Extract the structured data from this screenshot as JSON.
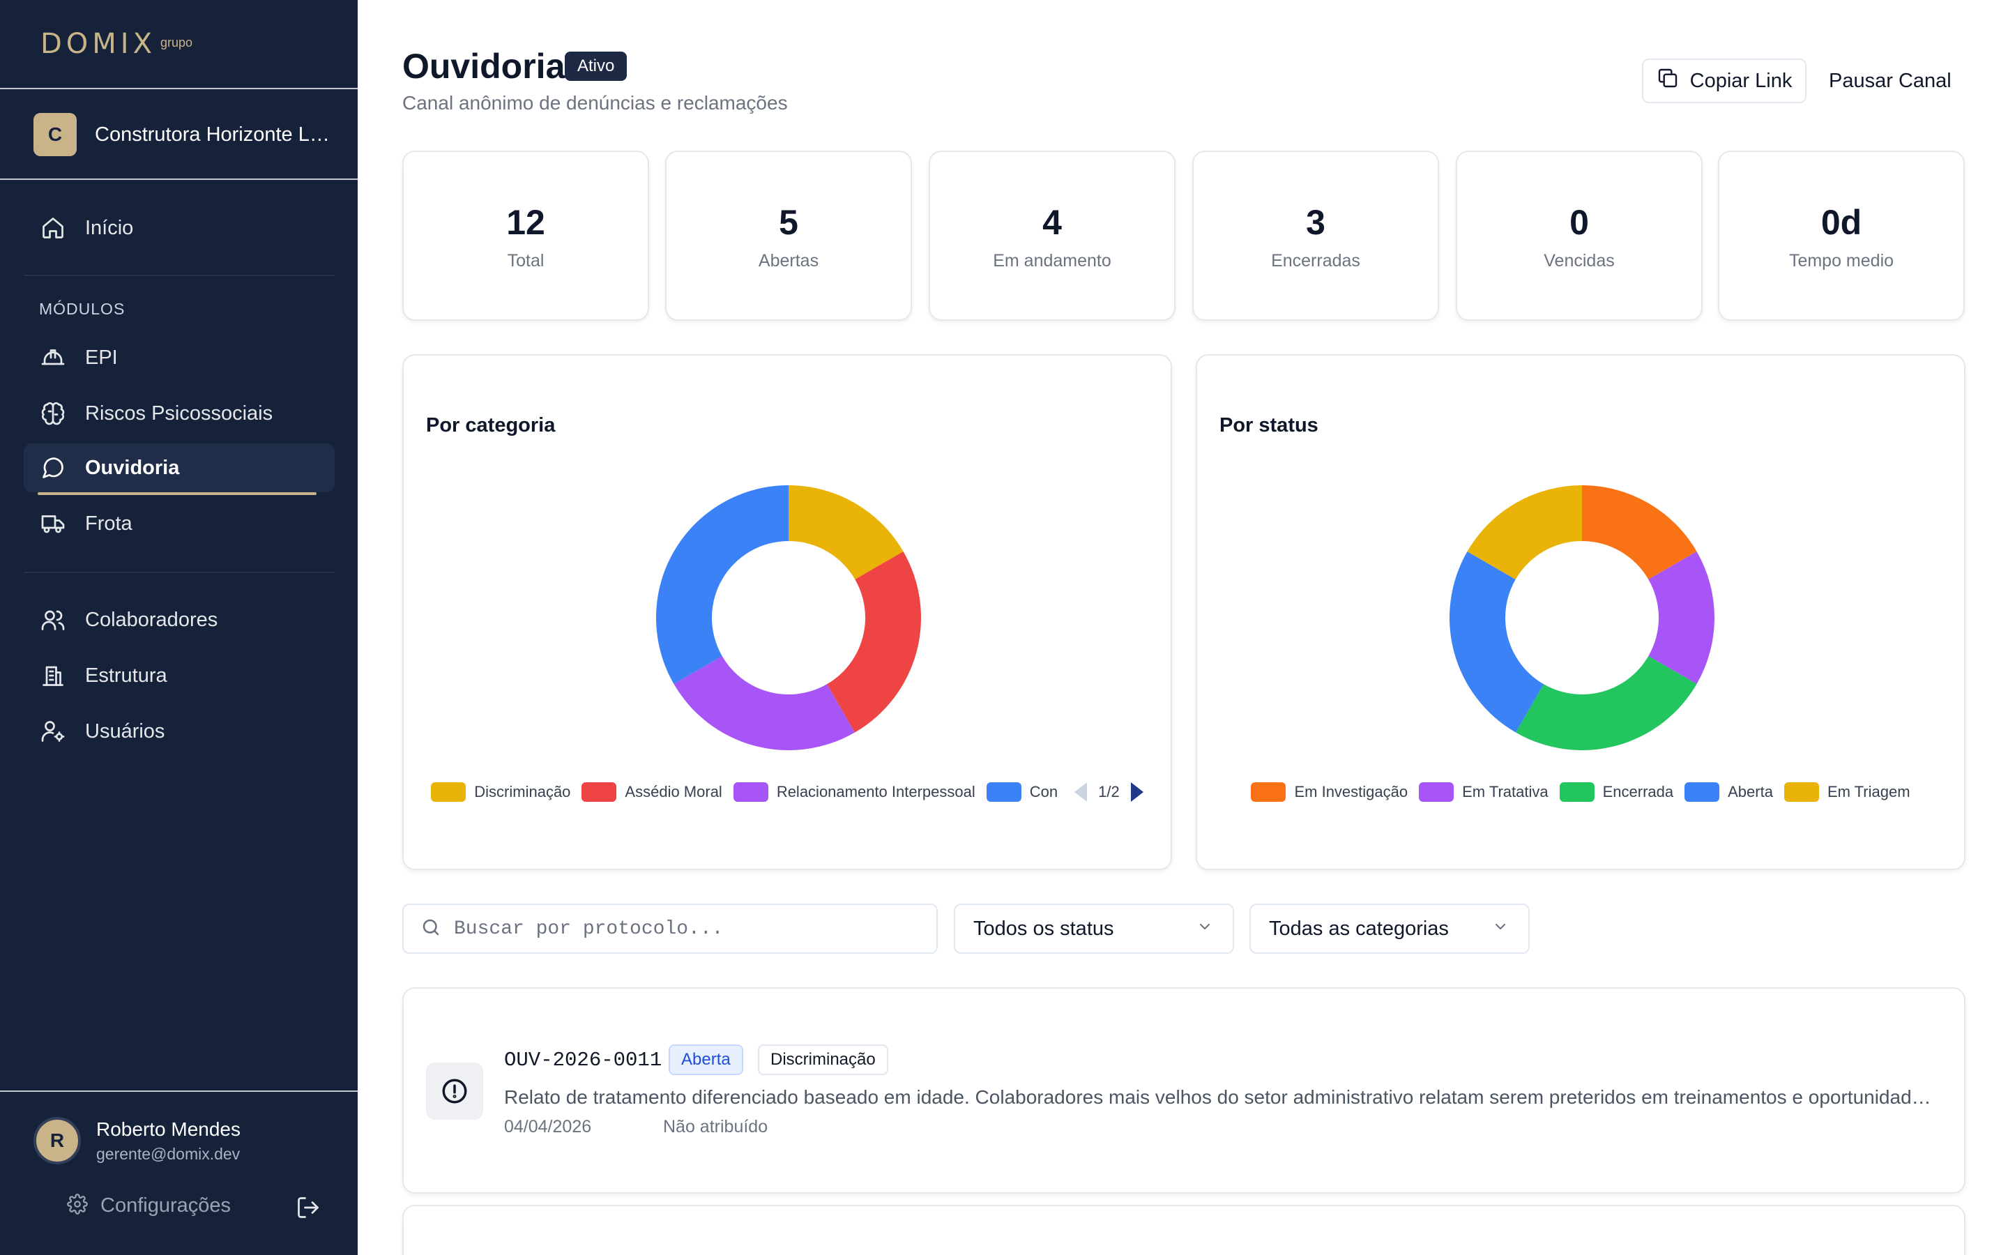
{
  "brand": {
    "name": "DOMIX",
    "suffix": "grupo",
    "accent": "#c9b389",
    "sidebar_bg": "#15223a"
  },
  "company": {
    "initial": "C",
    "name": "Construtora Horizonte Ltda"
  },
  "nav": {
    "home": {
      "label": "Início",
      "icon": "home-icon"
    },
    "section_label": "MÓDULOS",
    "modules": [
      {
        "label": "EPI",
        "icon": "hard-hat-icon"
      },
      {
        "label": "Riscos Psicossociais",
        "icon": "brain-icon"
      },
      {
        "label": "Ouvidoria",
        "icon": "chat-bubble-icon",
        "active": true
      },
      {
        "label": "Frota",
        "icon": "truck-icon"
      }
    ],
    "admin": [
      {
        "label": "Colaboradores",
        "icon": "users-icon"
      },
      {
        "label": "Estrutura",
        "icon": "building-icon"
      },
      {
        "label": "Usuários",
        "icon": "user-settings-icon"
      }
    ]
  },
  "user": {
    "initial": "R",
    "name": "Roberto Mendes",
    "email": "gerente@domix.dev"
  },
  "footer": {
    "settings_label": "Configurações"
  },
  "header": {
    "title": "Ouvidoria",
    "status": "Ativo",
    "subtitle": "Canal anônimo de denúncias e reclamações",
    "copy_link": "Copiar Link",
    "pause": "Pausar Canal"
  },
  "stats": [
    {
      "value": "12",
      "label": "Total"
    },
    {
      "value": "5",
      "label": "Abertas"
    },
    {
      "value": "4",
      "label": "Em andamento"
    },
    {
      "value": "3",
      "label": "Encerradas"
    },
    {
      "value": "0",
      "label": "Vencidas"
    },
    {
      "value": "0d",
      "label": "Tempo medio"
    }
  ],
  "chart_data": [
    {
      "type": "pie",
      "title": "Por categoria",
      "categories": [
        "Discriminação",
        "Assédio Moral",
        "Relacionamento Interpessoal",
        "Con"
      ],
      "values": [
        2,
        3,
        3,
        4
      ],
      "colors": [
        "#eab308",
        "#ef4444",
        "#a855f7",
        "#3b82f6"
      ],
      "legend_page": "1/2",
      "legend_position": "bottom"
    },
    {
      "type": "pie",
      "title": "Por status",
      "categories": [
        "Em Investigação",
        "Em Tratativa",
        "Encerrada",
        "Aberta",
        "Em Triagem"
      ],
      "values": [
        2,
        2,
        3,
        3,
        2
      ],
      "colors": [
        "#f97316",
        "#a855f7",
        "#22c55e",
        "#3b82f6",
        "#eab308"
      ],
      "legend_position": "bottom"
    }
  ],
  "filters": {
    "search_placeholder": "Buscar por protocolo...",
    "status": "Todos os status",
    "category": "Todas as categorias"
  },
  "tickets": [
    {
      "protocol": "OUV-2026-0011",
      "status": "Aberta",
      "category": "Discriminação",
      "description": "Relato de tratamento diferenciado baseado em idade. Colaboradores mais velhos do setor administrativo relatam serem preteridos em treinamentos e oportunidades de crescimento.",
      "date": "04/04/2026",
      "assignee": "Não atribuído"
    }
  ]
}
